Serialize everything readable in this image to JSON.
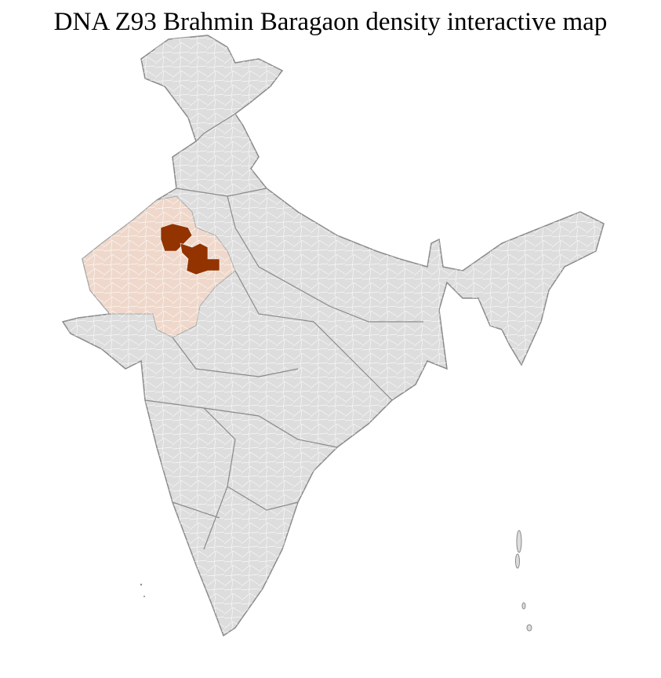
{
  "title": "DNA Z93 Brahmin Baragaon density interactive map",
  "colors": {
    "base_region": "#dddddd",
    "border": "#8a8a8a",
    "internal_border": "#ffffff",
    "low_density": "#efd8cb",
    "high_density": "#933300"
  },
  "legend": null
}
